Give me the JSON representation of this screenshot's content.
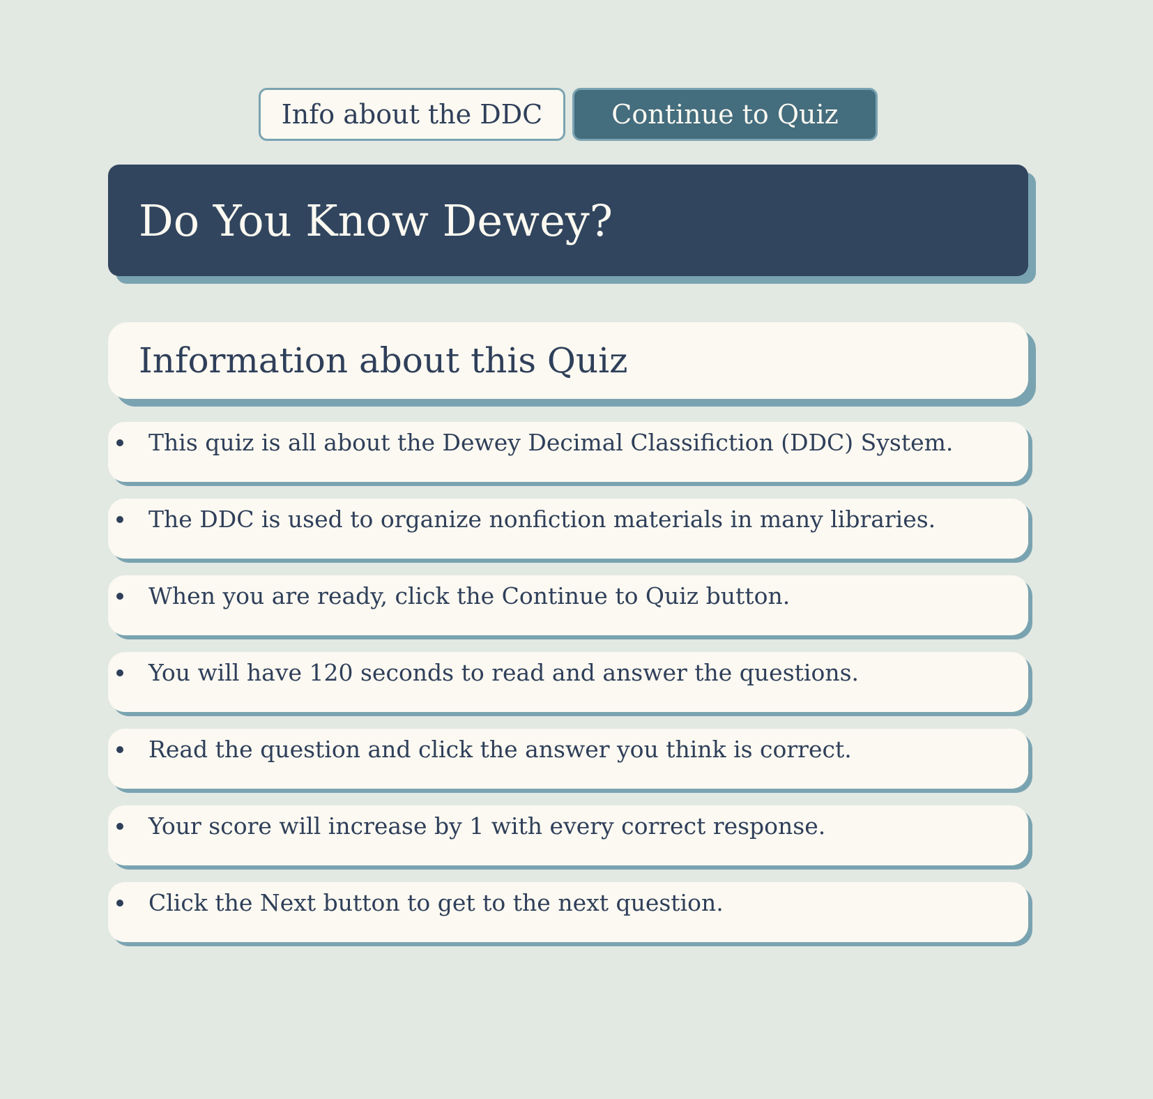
{
  "nav": {
    "info_label": "Info about the DDC",
    "quiz_label": "Continue to Quiz"
  },
  "header": {
    "title": "Do You Know Dewey?"
  },
  "info": {
    "title": "Information about this Quiz",
    "items": [
      "This quiz is all about the Dewey Decimal Classifiction (DDC) System.",
      "The DDC is used to organize nonfiction materials in many libraries.",
      "When you are ready, click the Continue to Quiz button.",
      "You will have 120 seconds to read and answer the questions.",
      "Read the question and click the answer you think is correct.",
      "Your score will increase by 1 with every correct response.",
      "Click the Next button to get to the next question."
    ]
  }
}
